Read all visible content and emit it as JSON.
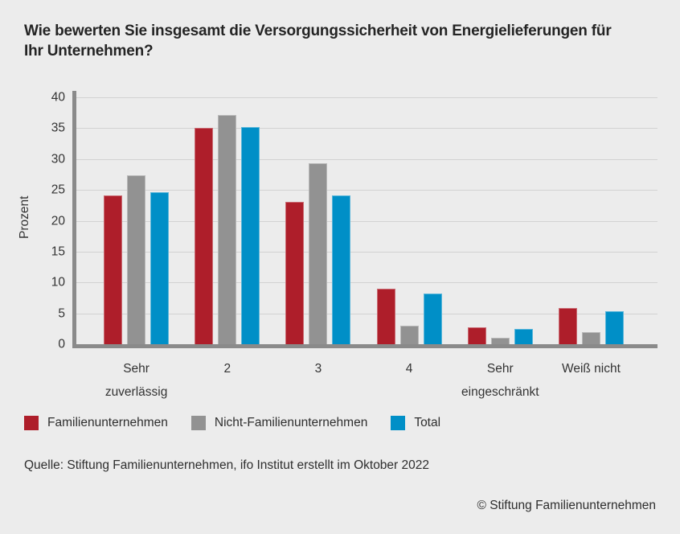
{
  "page": {
    "title": "Wie bewerten Sie insgesamt die Versorgungssicherheit von Energielieferungen für\nIhr Unternehmen?",
    "source": "Quelle: Stiftung Familienunternehmen, ifo Institut erstellt im Oktober 2022",
    "copyright": "© Stiftung Familienunternehmen"
  },
  "chart_data": {
    "type": "bar",
    "title": "Wie bewerten Sie insgesamt die Versorgungssicherheit von Energielieferungen für Ihr Unternehmen?",
    "xlabel": "",
    "ylabel": "Prozent",
    "ylim": [
      0,
      40
    ],
    "ytick_step": 5,
    "grid": true,
    "legend_position": "bottom",
    "background_color": "#ececec",
    "axis_color": "#8a8a8a",
    "gridline_color": "#d2d2d2",
    "categories": [
      "Sehr\nzuverlässig",
      "2",
      "3",
      "4",
      "Sehr\neingeschränkt",
      "Weiß nicht"
    ],
    "series": [
      {
        "name": "Familienunternehmen",
        "color": "#ae1e2a",
        "values": [
          24.1,
          35.0,
          23.1,
          9.0,
          2.7,
          5.9
        ]
      },
      {
        "name": "Nicht-Familienunternehmen",
        "color": "#929292",
        "values": [
          27.4,
          37.1,
          29.3,
          3.0,
          1.0,
          2.0
        ]
      },
      {
        "name": "Total",
        "color": "#008fc7",
        "values": [
          24.6,
          35.2,
          24.1,
          8.2,
          2.5,
          5.3
        ]
      }
    ]
  }
}
